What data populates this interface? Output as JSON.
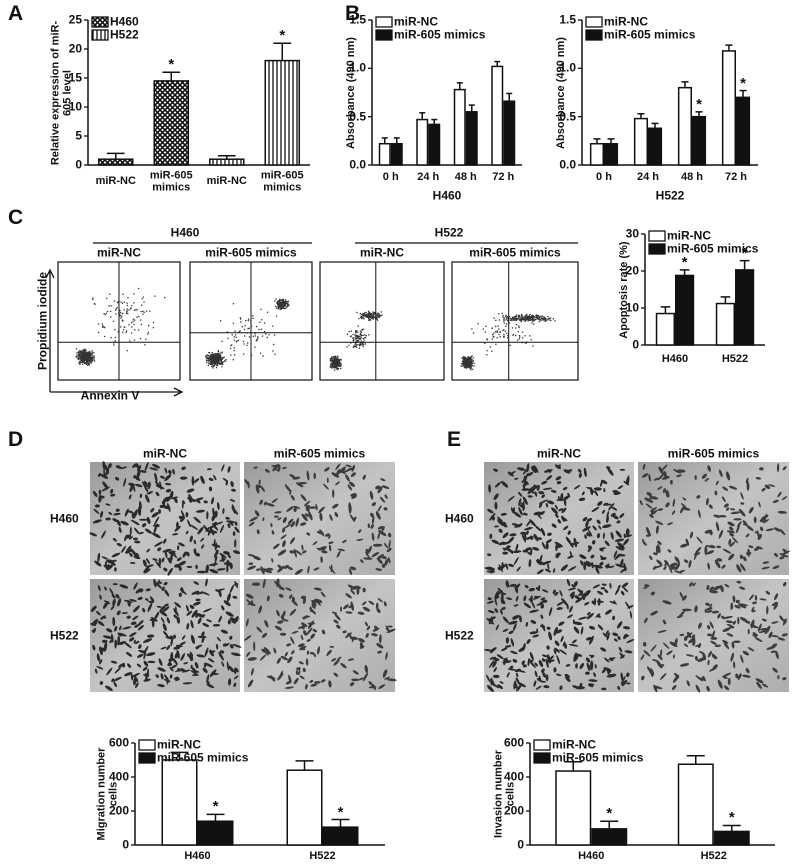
{
  "panels": [
    "A",
    "B",
    "C",
    "D",
    "E"
  ],
  "chart_data": [
    {
      "type": "bar",
      "y_label": "Relative expression of miR-605 level",
      "categories": [
        "miR-NC",
        "miR-605 mimics",
        "miR-NC",
        "miR-605 mimics"
      ],
      "ylim": [
        0,
        25
      ],
      "yticks": [
        0,
        5,
        10,
        15,
        20,
        25
      ],
      "legend": "top-left",
      "series": [
        {
          "name": "H460",
          "color": "#111111",
          "pattern": "crosshatch",
          "values": [
            1,
            14.5,
            null,
            null
          ],
          "errors": [
            1,
            1.5,
            null,
            null
          ],
          "markers": [
            null,
            "*",
            null,
            null
          ]
        },
        {
          "name": "H522",
          "color": "#111111",
          "pattern": "vertical-stripes",
          "values": [
            null,
            null,
            1,
            18
          ],
          "errors": [
            null,
            null,
            0.6,
            3
          ],
          "markers": [
            null,
            null,
            null,
            "*"
          ]
        }
      ]
    },
    {
      "type": "bar",
      "y_label": "Absorbance (490 nm)",
      "x_label": "H460",
      "categories": [
        "0 h",
        "24 h",
        "48 h",
        "72 h"
      ],
      "ylim": [
        0,
        1.5
      ],
      "yticks": [
        {
          "value": 0,
          "label": "0.0"
        },
        {
          "value": 0.5,
          "label": "0.5"
        },
        {
          "value": 1,
          "label": "1.0"
        },
        {
          "value": 1.5,
          "label": "1.5"
        }
      ],
      "legend": "top-left",
      "series": [
        {
          "name": "miR-NC",
          "color": "#ffffff",
          "values": [
            0.22,
            0.47,
            0.78,
            1.02
          ],
          "errors": [
            0.06,
            0.07,
            0.07,
            0.05
          ]
        },
        {
          "name": "miR-605 mimics",
          "color": "#111111",
          "values": [
            0.22,
            0.42,
            0.55,
            0.66
          ],
          "errors": [
            0.06,
            0.05,
            0.07,
            0.08
          ]
        }
      ]
    },
    {
      "type": "bar",
      "y_label": "Absorbance (490 nm)",
      "x_label": "H522",
      "categories": [
        "0 h",
        "24 h",
        "48 h",
        "72 h"
      ],
      "ylim": [
        0,
        1.5
      ],
      "yticks": [
        {
          "value": 0,
          "label": "0.0"
        },
        {
          "value": 0.5,
          "label": "0.5"
        },
        {
          "value": 1,
          "label": "1.0"
        },
        {
          "value": 1.5,
          "label": "1.5"
        }
      ],
      "legend": "top-left",
      "series": [
        {
          "name": "miR-NC",
          "color": "#ffffff",
          "values": [
            0.22,
            0.48,
            0.8,
            1.18
          ],
          "errors": [
            0.05,
            0.05,
            0.06,
            0.06
          ]
        },
        {
          "name": "miR-605 mimics",
          "color": "#111111",
          "values": [
            0.22,
            0.38,
            0.5,
            0.7
          ],
          "errors": [
            0.05,
            0.05,
            0.05,
            0.07
          ],
          "markers": [
            null,
            null,
            "*",
            "*"
          ]
        }
      ]
    },
    {
      "type": "bar",
      "y_label": "Apoptosis rate (%)",
      "categories": [
        "H460",
        "H522"
      ],
      "ylim": [
        0,
        30
      ],
      "yticks": [
        0,
        10,
        20,
        30
      ],
      "legend": "top-left",
      "series": [
        {
          "name": "miR-NC",
          "color": "#ffffff",
          "values": [
            8.5,
            11.2
          ],
          "errors": [
            1.8,
            1.8
          ]
        },
        {
          "name": "miR-605 mimics",
          "color": "#111111",
          "values": [
            18.8,
            20.3
          ],
          "errors": [
            1.5,
            2.5
          ],
          "markers": [
            "*",
            "*"
          ]
        }
      ]
    },
    {
      "type": "bar",
      "y_label": "Migration number cells",
      "categories": [
        "H460",
        "H522"
      ],
      "ylim": [
        0,
        600
      ],
      "yticks": [
        0,
        200,
        400,
        600
      ],
      "legend": "top-left",
      "series": [
        {
          "name": "miR-NC",
          "color": "#ffffff",
          "values": [
            500,
            440
          ],
          "errors": [
            45,
            55
          ]
        },
        {
          "name": "miR-605 mimics",
          "color": "#111111",
          "values": [
            140,
            105
          ],
          "errors": [
            40,
            45
          ],
          "markers": [
            "*",
            "*"
          ]
        }
      ]
    },
    {
      "type": "bar",
      "y_label": "Invasion number cells",
      "categories": [
        "H460",
        "H522"
      ],
      "ylim": [
        0,
        600
      ],
      "yticks": [
        0,
        200,
        400,
        600
      ],
      "legend": "top-left",
      "series": [
        {
          "name": "miR-NC",
          "color": "#ffffff",
          "values": [
            435,
            475
          ],
          "errors": [
            55,
            50
          ]
        },
        {
          "name": "miR-605 mimics",
          "color": "#111111",
          "values": [
            95,
            80
          ],
          "errors": [
            45,
            35
          ],
          "markers": [
            "*",
            "*"
          ]
        }
      ]
    }
  ],
  "flow_cytometry": {
    "groups": [
      {
        "name": "H460",
        "conditions": [
          "miR-NC",
          "miR-605 mimics"
        ]
      },
      {
        "name": "H522",
        "conditions": [
          "miR-NC",
          "miR-605 mimics"
        ]
      }
    ],
    "y_label": "Propidium iodide",
    "x_label": "Annexin V"
  },
  "migration_images": {
    "columns": [
      "miR-NC",
      "miR-605 mimics"
    ],
    "rows": [
      "H460",
      "H522"
    ]
  },
  "invasion_images": {
    "columns": [
      "miR-NC",
      "miR-605 mimics"
    ],
    "rows": [
      "H460",
      "H522"
    ]
  }
}
